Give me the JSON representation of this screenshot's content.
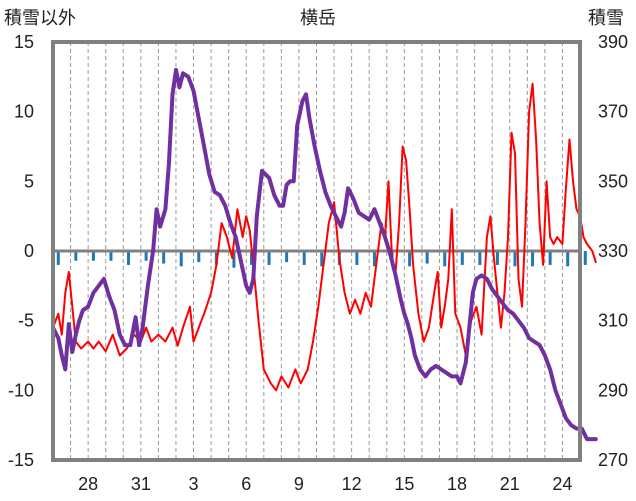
{
  "chart_data": {
    "type": "line",
    "title": "横岳",
    "ylabel_left": "積雪以外",
    "ylabel_right": "積雪",
    "ylim_left": [
      -15,
      15
    ],
    "ylim_right": [
      270,
      390
    ],
    "yticks_left": [
      15,
      10,
      5,
      0,
      -5,
      -10,
      -15
    ],
    "yticks_right": [
      390,
      370,
      350,
      330,
      310,
      290,
      270
    ],
    "x_range": [
      0,
      30
    ],
    "xticks": [
      {
        "pos": 2,
        "label": "28"
      },
      {
        "pos": 5,
        "label": "31"
      },
      {
        "pos": 8,
        "label": "3"
      },
      {
        "pos": 11,
        "label": "6"
      },
      {
        "pos": 14,
        "label": "9"
      },
      {
        "pos": 17,
        "label": "12"
      },
      {
        "pos": 20,
        "label": "15"
      },
      {
        "pos": 23,
        "label": "18"
      },
      {
        "pos": 26,
        "label": "21"
      },
      {
        "pos": 29,
        "label": "24"
      }
    ],
    "grid": "vertical-dashed",
    "series": [
      {
        "axis": "left",
        "color": "#ff0000",
        "values": [
          [
            0.0,
            -5.5
          ],
          [
            0.3,
            -4.5
          ],
          [
            0.5,
            -6.0
          ],
          [
            0.7,
            -3.0
          ],
          [
            0.9,
            -1.5
          ],
          [
            1.1,
            -4.0
          ],
          [
            1.3,
            -6.5
          ],
          [
            1.6,
            -7.0
          ],
          [
            2.0,
            -6.5
          ],
          [
            2.3,
            -7.0
          ],
          [
            2.6,
            -6.5
          ],
          [
            3.0,
            -7.2
          ],
          [
            3.4,
            -6.0
          ],
          [
            3.8,
            -7.5
          ],
          [
            4.2,
            -7.0
          ],
          [
            4.6,
            -6.0
          ],
          [
            5.0,
            -6.5
          ],
          [
            5.3,
            -5.5
          ],
          [
            5.6,
            -6.5
          ],
          [
            6.0,
            -6.0
          ],
          [
            6.4,
            -6.5
          ],
          [
            6.8,
            -5.5
          ],
          [
            7.1,
            -6.8
          ],
          [
            7.4,
            -5.5
          ],
          [
            7.8,
            -4.0
          ],
          [
            8.0,
            -6.5
          ],
          [
            8.3,
            -5.5
          ],
          [
            8.6,
            -4.5
          ],
          [
            9.0,
            -3.0
          ],
          [
            9.3,
            -1.0
          ],
          [
            9.6,
            2.0
          ],
          [
            9.9,
            1.0
          ],
          [
            10.2,
            -0.5
          ],
          [
            10.5,
            3.0
          ],
          [
            10.8,
            1.0
          ],
          [
            11.0,
            2.5
          ],
          [
            11.2,
            1.5
          ],
          [
            11.4,
            -1.0
          ],
          [
            11.7,
            -5.0
          ],
          [
            12.0,
            -8.5
          ],
          [
            12.4,
            -9.5
          ],
          [
            12.7,
            -10.0
          ],
          [
            13.0,
            -9.0
          ],
          [
            13.4,
            -9.8
          ],
          [
            13.8,
            -8.5
          ],
          [
            14.1,
            -9.5
          ],
          [
            14.5,
            -8.5
          ],
          [
            14.8,
            -6.5
          ],
          [
            15.1,
            -4.0
          ],
          [
            15.4,
            -1.0
          ],
          [
            15.7,
            2.0
          ],
          [
            16.0,
            3.5
          ],
          [
            16.3,
            -0.5
          ],
          [
            16.6,
            -3.0
          ],
          [
            16.9,
            -4.5
          ],
          [
            17.2,
            -3.5
          ],
          [
            17.5,
            -4.5
          ],
          [
            17.8,
            -3.0
          ],
          [
            18.1,
            -4.0
          ],
          [
            18.4,
            -1.0
          ],
          [
            18.7,
            2.0
          ],
          [
            18.9,
            1.0
          ],
          [
            19.1,
            5.0
          ],
          [
            19.3,
            -0.5
          ],
          [
            19.5,
            -1.5
          ],
          [
            19.7,
            2.0
          ],
          [
            19.9,
            7.5
          ],
          [
            20.1,
            6.5
          ],
          [
            20.3,
            3.0
          ],
          [
            20.5,
            -1.0
          ],
          [
            20.8,
            -4.5
          ],
          [
            21.1,
            -6.5
          ],
          [
            21.4,
            -5.5
          ],
          [
            21.7,
            -3.0
          ],
          [
            21.9,
            -1.5
          ],
          [
            22.1,
            -5.5
          ],
          [
            22.3,
            -4.0
          ],
          [
            22.5,
            -2.0
          ],
          [
            22.7,
            3.0
          ],
          [
            22.9,
            -4.5
          ],
          [
            23.2,
            -5.5
          ],
          [
            23.5,
            -7.5
          ],
          [
            23.8,
            -5.0
          ],
          [
            24.1,
            -4.0
          ],
          [
            24.4,
            -6.0
          ],
          [
            24.7,
            1.0
          ],
          [
            24.9,
            2.5
          ],
          [
            25.1,
            -0.5
          ],
          [
            25.3,
            -3.0
          ],
          [
            25.5,
            -5.5
          ],
          [
            25.7,
            -3.0
          ],
          [
            25.9,
            1.0
          ],
          [
            26.1,
            8.5
          ],
          [
            26.3,
            7.0
          ],
          [
            26.5,
            -2.0
          ],
          [
            26.7,
            -4.0
          ],
          [
            26.9,
            2.0
          ],
          [
            27.1,
            10.0
          ],
          [
            27.3,
            12.0
          ],
          [
            27.5,
            8.0
          ],
          [
            27.7,
            2.0
          ],
          [
            27.9,
            -1.0
          ],
          [
            28.1,
            5.0
          ],
          [
            28.3,
            1.0
          ],
          [
            28.5,
            0.5
          ],
          [
            28.7,
            1.0
          ],
          [
            29.0,
            0.5
          ],
          [
            29.2,
            4.5
          ],
          [
            29.4,
            8.0
          ],
          [
            29.6,
            5.0
          ],
          [
            29.8,
            3.0
          ],
          [
            30.0,
            2.5
          ],
          [
            30.2,
            1.0
          ],
          [
            30.4,
            0.5
          ],
          [
            30.7,
            0.0
          ],
          [
            30.9,
            -0.8
          ]
        ]
      },
      {
        "axis": "right",
        "color": "#7030a0",
        "values": [
          [
            0.0,
            308
          ],
          [
            0.3,
            305
          ],
          [
            0.5,
            300
          ],
          [
            0.7,
            296
          ],
          [
            0.9,
            309
          ],
          [
            1.1,
            301
          ],
          [
            1.3,
            306
          ],
          [
            1.5,
            310
          ],
          [
            1.7,
            313
          ],
          [
            2.0,
            314
          ],
          [
            2.3,
            318
          ],
          [
            2.6,
            320
          ],
          [
            2.9,
            322
          ],
          [
            3.2,
            317
          ],
          [
            3.5,
            313
          ],
          [
            3.8,
            306
          ],
          [
            4.1,
            303
          ],
          [
            4.4,
            303
          ],
          [
            4.7,
            311
          ],
          [
            4.9,
            303
          ],
          [
            5.1,
            308
          ],
          [
            5.4,
            320
          ],
          [
            5.7,
            330
          ],
          [
            5.9,
            342
          ],
          [
            6.1,
            337
          ],
          [
            6.4,
            342
          ],
          [
            6.6,
            355
          ],
          [
            6.8,
            375
          ],
          [
            7.0,
            382
          ],
          [
            7.2,
            377
          ],
          [
            7.4,
            381
          ],
          [
            7.7,
            380
          ],
          [
            8.0,
            376
          ],
          [
            8.3,
            368
          ],
          [
            8.6,
            360
          ],
          [
            8.9,
            352
          ],
          [
            9.2,
            347
          ],
          [
            9.5,
            346
          ],
          [
            9.8,
            343
          ],
          [
            10.1,
            338
          ],
          [
            10.4,
            334
          ],
          [
            10.7,
            327
          ],
          [
            11.0,
            320
          ],
          [
            11.2,
            318
          ],
          [
            11.4,
            322
          ],
          [
            11.6,
            340
          ],
          [
            11.9,
            353
          ],
          [
            12.1,
            352
          ],
          [
            12.3,
            351
          ],
          [
            12.6,
            346
          ],
          [
            12.9,
            343
          ],
          [
            13.1,
            343
          ],
          [
            13.3,
            349
          ],
          [
            13.5,
            350
          ],
          [
            13.7,
            350
          ],
          [
            13.9,
            366
          ],
          [
            14.2,
            373
          ],
          [
            14.4,
            375
          ],
          [
            14.6,
            368
          ],
          [
            14.9,
            360
          ],
          [
            15.2,
            353
          ],
          [
            15.5,
            347
          ],
          [
            15.8,
            343
          ],
          [
            16.1,
            340
          ],
          [
            16.4,
            337
          ],
          [
            16.6,
            341
          ],
          [
            16.8,
            348
          ],
          [
            17.1,
            345
          ],
          [
            17.4,
            341
          ],
          [
            17.7,
            340
          ],
          [
            18.0,
            339
          ],
          [
            18.3,
            342
          ],
          [
            18.6,
            338
          ],
          [
            18.9,
            334
          ],
          [
            19.2,
            329
          ],
          [
            19.5,
            323
          ],
          [
            19.8,
            316
          ],
          [
            20.0,
            312
          ],
          [
            20.2,
            309
          ],
          [
            20.4,
            305
          ],
          [
            20.6,
            300
          ],
          [
            20.9,
            296
          ],
          [
            21.2,
            294
          ],
          [
            21.5,
            296
          ],
          [
            21.8,
            297
          ],
          [
            22.1,
            296
          ],
          [
            22.4,
            295
          ],
          [
            22.7,
            294
          ],
          [
            23.0,
            294
          ],
          [
            23.2,
            292
          ],
          [
            23.5,
            298
          ],
          [
            23.7,
            308
          ],
          [
            23.9,
            318
          ],
          [
            24.1,
            322
          ],
          [
            24.4,
            323
          ],
          [
            24.7,
            322
          ],
          [
            25.0,
            319
          ],
          [
            25.3,
            317
          ],
          [
            25.6,
            315
          ],
          [
            25.9,
            313
          ],
          [
            26.2,
            312
          ],
          [
            26.5,
            310
          ],
          [
            26.8,
            308
          ],
          [
            27.1,
            305
          ],
          [
            27.4,
            304
          ],
          [
            27.7,
            303
          ],
          [
            28.0,
            300
          ],
          [
            28.3,
            296
          ],
          [
            28.6,
            290
          ],
          [
            28.9,
            286
          ],
          [
            29.2,
            282
          ],
          [
            29.5,
            280
          ],
          [
            29.8,
            279
          ],
          [
            30.1,
            279
          ],
          [
            30.4,
            276
          ],
          [
            30.7,
            276
          ],
          [
            30.9,
            276
          ]
        ]
      },
      {
        "axis": "left",
        "color": "#1f78b4",
        "type": "bar",
        "values": [
          [
            0.3,
            -1.0
          ],
          [
            1.3,
            -0.7
          ],
          [
            2.3,
            -0.7
          ],
          [
            3.3,
            -0.7
          ],
          [
            4.3,
            -1.0
          ],
          [
            5.3,
            -0.7
          ],
          [
            6.3,
            -0.9
          ],
          [
            7.3,
            -1.1
          ],
          [
            8.3,
            -0.8
          ],
          [
            9.3,
            -1.0
          ],
          [
            10.3,
            -1.2
          ],
          [
            11.3,
            -1.0
          ],
          [
            12.3,
            -1.0
          ],
          [
            13.3,
            -0.8
          ],
          [
            14.3,
            -1.0
          ],
          [
            15.3,
            -1.1
          ],
          [
            16.3,
            -1.0
          ],
          [
            17.3,
            -1.0
          ],
          [
            18.3,
            -1.1
          ],
          [
            19.3,
            -0.9
          ],
          [
            20.3,
            -1.1
          ],
          [
            21.3,
            -0.9
          ],
          [
            22.3,
            -1.1
          ],
          [
            23.3,
            -1.0
          ],
          [
            24.3,
            -1.0
          ],
          [
            25.3,
            -1.0
          ],
          [
            26.3,
            -1.1
          ],
          [
            27.3,
            -1.1
          ],
          [
            28.3,
            -1.0
          ],
          [
            29.3,
            -1.1
          ],
          [
            30.3,
            -1.0
          ]
        ]
      }
    ]
  }
}
